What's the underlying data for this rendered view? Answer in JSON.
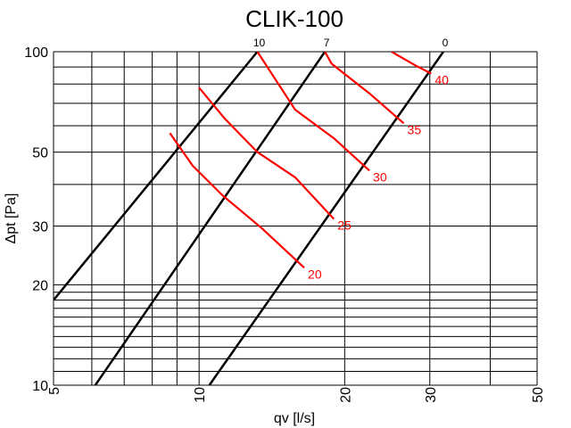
{
  "chart_data": {
    "type": "line",
    "title": "CLIK-100",
    "xlabel": "qv [l/s]",
    "ylabel": "Δpt [Pa]",
    "xscale": "log",
    "yscale": "log",
    "xlim": [
      5,
      50
    ],
    "ylim": [
      10,
      100
    ],
    "x_ticks": [
      5,
      10,
      20,
      30,
      50
    ],
    "y_ticks": [
      10,
      20,
      30,
      50,
      100
    ],
    "grid": true,
    "black_color": "#000000",
    "red_color": "#ff0000",
    "system_curves": [
      {
        "label": "10",
        "points": [
          [
            5,
            18
          ],
          [
            13.2,
            100
          ]
        ]
      },
      {
        "label": "7",
        "points": [
          [
            6.1,
            10
          ],
          [
            18.2,
            100
          ]
        ]
      },
      {
        "label": "0",
        "points": [
          [
            10.5,
            10
          ],
          [
            32,
            100
          ]
        ]
      }
    ],
    "operating_curves": [
      {
        "label": "20",
        "points": [
          [
            8.7,
            57
          ],
          [
            9.7,
            45.5
          ],
          [
            11.2,
            37
          ],
          [
            13.5,
            29.5
          ],
          [
            16.5,
            22.5
          ]
        ]
      },
      {
        "label": "25",
        "points": [
          [
            10,
            78
          ],
          [
            11.3,
            63
          ],
          [
            13.2,
            50
          ],
          [
            15.8,
            42
          ],
          [
            19,
            31.5
          ]
        ]
      },
      {
        "label": "30",
        "points": [
          [
            13.2,
            100
          ],
          [
            15.8,
            67
          ],
          [
            19,
            55
          ],
          [
            22.5,
            44
          ]
        ]
      },
      {
        "label": "35",
        "points": [
          [
            18.2,
            100
          ],
          [
            18.8,
            92
          ],
          [
            22.5,
            75
          ],
          [
            26.5,
            61
          ]
        ]
      },
      {
        "label": "40",
        "points": [
          [
            25,
            100
          ],
          [
            28,
            91
          ],
          [
            30.2,
            86
          ]
        ]
      }
    ]
  }
}
